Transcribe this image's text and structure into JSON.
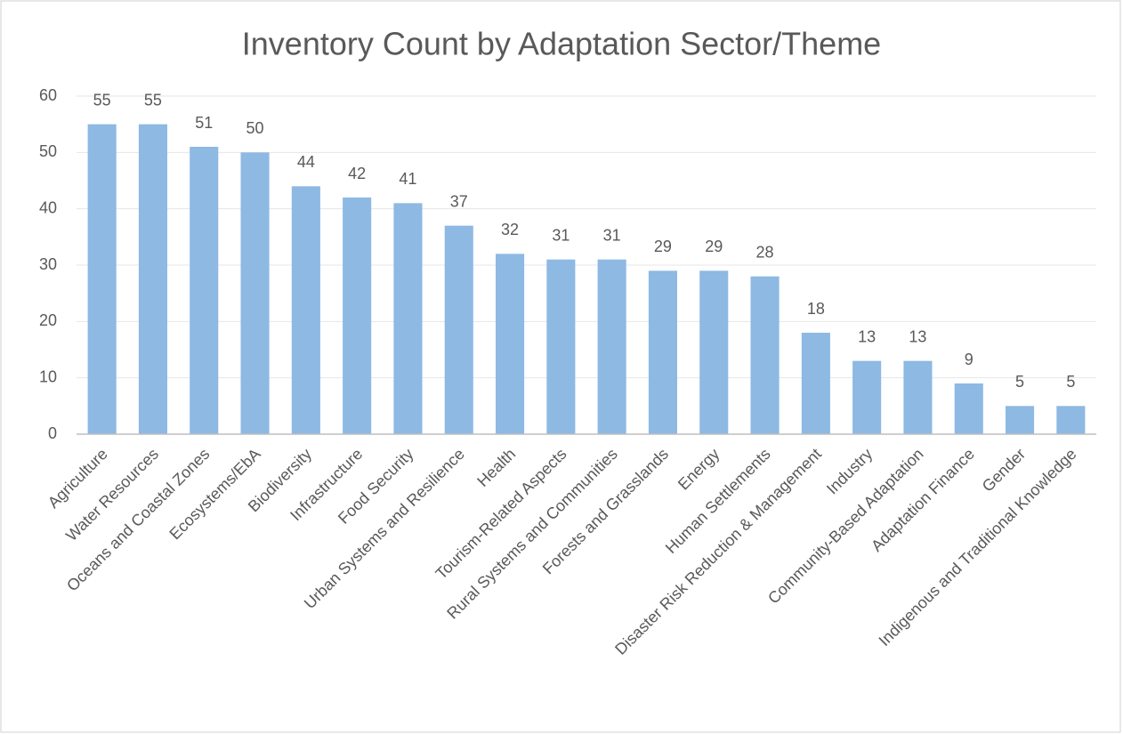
{
  "chart_data": {
    "type": "bar",
    "title": "Inventory Count by Adaptation Sector/Theme",
    "categories": [
      "Agriculture",
      "Water Resources",
      "Oceans and Coastal Zones",
      "Ecosystems/EbA",
      "Biodiversity",
      "Infrastructure",
      "Food Security",
      "Urban Systems and Resilience",
      "Health",
      "Tourism-Related Aspects",
      "Rural Systems and Communities",
      "Forests and Grasslands",
      "Energy",
      "Human Settlements",
      "Disaster Risk Reduction & Management",
      "Industry",
      "Community-Based Adaptation",
      "Adaptation Finance",
      "Gender",
      "Indigenous and Traditional Knowledge"
    ],
    "values": [
      55,
      55,
      51,
      50,
      44,
      42,
      41,
      37,
      32,
      31,
      31,
      29,
      29,
      28,
      18,
      13,
      13,
      9,
      5,
      5
    ],
    "color": "#8db9e3",
    "ylim": [
      0,
      60
    ],
    "yticks": [
      0,
      10,
      20,
      30,
      40,
      50,
      60
    ],
    "grid": true,
    "data_labels": true
  }
}
